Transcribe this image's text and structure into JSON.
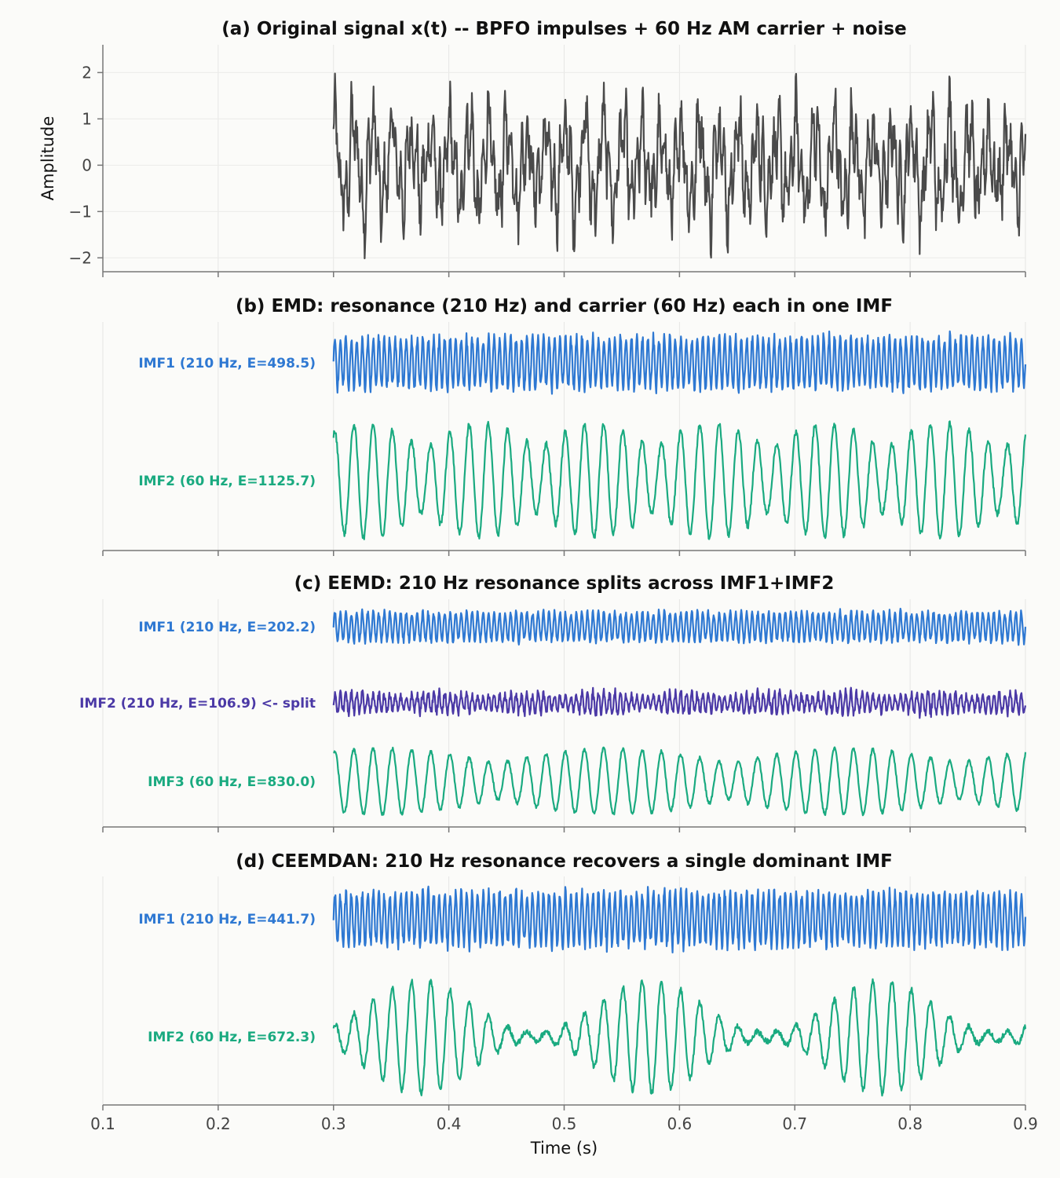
{
  "chart_data": [
    {
      "type": "line",
      "panel": "a",
      "title": "(a) Original signal x(t) -- BPFO impulses + 60 Hz AM carrier + noise",
      "ylabel": "Amplitude",
      "xlim": [
        0.1,
        0.9
      ],
      "ylim": [
        -2.3,
        2.6
      ],
      "yticks": [
        -2,
        -1,
        0,
        1,
        2
      ],
      "ytick_labels": [
        "−2",
        "−1",
        "0",
        "1",
        "2"
      ],
      "grid": true,
      "signal_start_s": 0.3,
      "series": [
        {
          "color": "#4a4a4a",
          "components_hz": [
            210,
            60
          ],
          "approx_amplitude": 2.4
        }
      ]
    },
    {
      "type": "line",
      "panel": "b",
      "title": "(b) EMD: resonance (210 Hz) and carrier (60 Hz) each in one IMF",
      "xlim": [
        0.1,
        0.9
      ],
      "grid": true,
      "series": [
        {
          "label": "IMF1 (210 Hz, E=498.5)",
          "color": "#2e78d2",
          "freq_hz": 210,
          "modulation": "constant"
        },
        {
          "label": "IMF2 (60 Hz, E=1125.7)",
          "color": "#1aaa80",
          "freq_hz": 60,
          "modulation": "am-10hz"
        }
      ]
    },
    {
      "type": "line",
      "panel": "c",
      "title": "(c) EEMD: 210 Hz resonance splits across IMF1+IMF2",
      "xlim": [
        0.1,
        0.9
      ],
      "grid": true,
      "series": [
        {
          "label": "IMF1 (210 Hz, E=202.2)",
          "color": "#2e78d2",
          "freq_hz": 210,
          "modulation": "constant"
        },
        {
          "label": "IMF2 (210 Hz, E=106.9) <- split",
          "color": "#4b39a6",
          "freq_hz": 210,
          "modulation": "noisy"
        },
        {
          "label": "IMF3 (60 Hz, E=830.0)",
          "color": "#1aaa80",
          "freq_hz": 60,
          "modulation": "am-5hz"
        }
      ]
    },
    {
      "type": "line",
      "panel": "d",
      "title": "(d) CEEMDAN: 210 Hz resonance recovers a single dominant IMF",
      "xlim": [
        0.1,
        0.9
      ],
      "xticks": [
        0.1,
        0.2,
        0.3,
        0.4,
        0.5,
        0.6,
        0.7,
        0.8,
        0.9
      ],
      "xtick_labels": [
        "0.1",
        "0.2",
        "0.3",
        "0.4",
        "0.5",
        "0.6",
        "0.7",
        "0.8",
        "0.9"
      ],
      "xlabel": "Time (s)",
      "grid": true,
      "series": [
        {
          "label": "IMF1 (210 Hz, E=441.7)",
          "color": "#2e78d2",
          "freq_hz": 210,
          "modulation": "constant"
        },
        {
          "label": "IMF2 (60 Hz, E=672.3)",
          "color": "#1aaa80",
          "freq_hz": 60,
          "modulation": "bursts-5hz"
        }
      ]
    }
  ]
}
